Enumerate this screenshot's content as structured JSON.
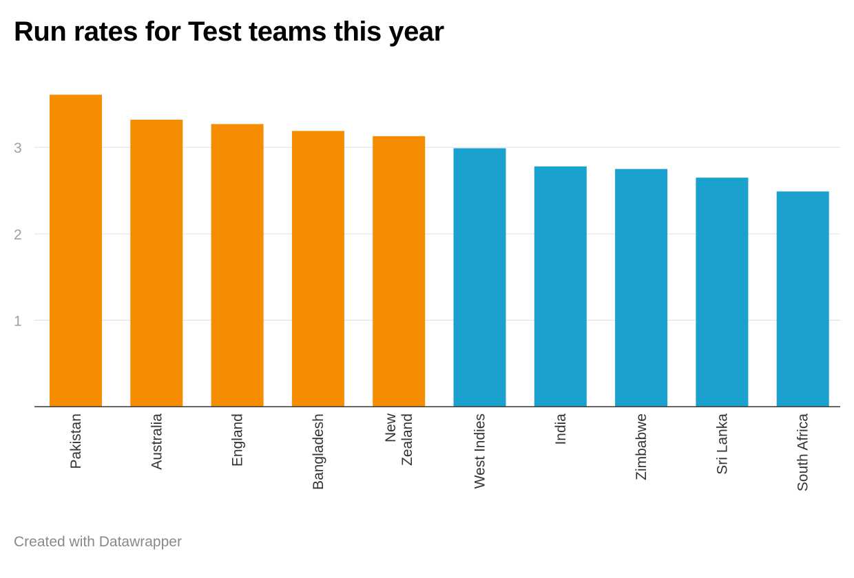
{
  "chart_data": {
    "type": "bar",
    "title": "Run rates for Test teams this year",
    "xlabel": "",
    "ylabel": "",
    "ylim": [
      0,
      3.6
    ],
    "yticks": [
      1,
      2,
      3
    ],
    "grid": true,
    "categories": [
      "Pakistan",
      "Australia",
      "England",
      "Bangladesh",
      "New Zealand",
      "West Indies",
      "India",
      "Zimbabwe",
      "Sri Lanka",
      "South Africa"
    ],
    "category_lines": [
      [
        "Pakistan"
      ],
      [
        "Australia"
      ],
      [
        "England"
      ],
      [
        "Bangladesh"
      ],
      [
        "New",
        "Zealand"
      ],
      [
        "West Indies"
      ],
      [
        "India"
      ],
      [
        "Zimbabwe"
      ],
      [
        "Sri Lanka"
      ],
      [
        "South Africa"
      ]
    ],
    "values": [
      3.61,
      3.32,
      3.27,
      3.19,
      3.13,
      2.99,
      2.78,
      2.75,
      2.65,
      2.49
    ],
    "groups": [
      "highlight",
      "highlight",
      "highlight",
      "highlight",
      "highlight",
      "normal",
      "normal",
      "normal",
      "normal",
      "normal"
    ],
    "colors": {
      "highlight": "#f68c00",
      "normal": "#1aa1cd"
    }
  },
  "footer": {
    "credit": "Created with Datawrapper"
  }
}
